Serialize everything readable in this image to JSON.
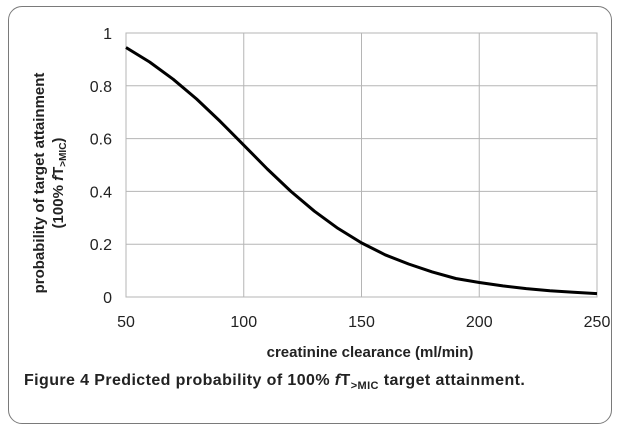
{
  "chart_data": {
    "type": "line",
    "title": "",
    "xlabel": "creatinine clearance (ml/min)",
    "ylabel_line1": "probability of target attainment",
    "ylabel_line2_prefix": "(100% ",
    "ylabel_line2_f": "f",
    "ylabel_line2_T": "T",
    "ylabel_line2_sub": ">MIC",
    "ylabel_line2_suffix": ")",
    "xlim": [
      50,
      250
    ],
    "ylim": [
      0,
      1
    ],
    "xticks": [
      50,
      100,
      150,
      200,
      250
    ],
    "yticks": [
      0,
      0.2,
      0.4,
      0.6,
      0.8,
      1
    ],
    "ytick_labels": [
      "0",
      "0.2",
      "0.4",
      "0.6",
      "0.8",
      "1"
    ],
    "grid": true,
    "line_color": "#000000",
    "series": [
      {
        "x": [
          50,
          60,
          70,
          80,
          90,
          100,
          110,
          120,
          130,
          140,
          150,
          160,
          170,
          180,
          190,
          200,
          210,
          220,
          230,
          240,
          250
        ],
        "values": [
          0.945,
          0.89,
          0.825,
          0.75,
          0.665,
          0.575,
          0.485,
          0.4,
          0.325,
          0.26,
          0.205,
          0.16,
          0.125,
          0.095,
          0.07,
          0.055,
          0.042,
          0.032,
          0.024,
          0.018,
          0.013
        ]
      }
    ]
  },
  "caption": {
    "label": "Figure 4",
    "text_before": "Predicted probability of 100% ",
    "f": "f",
    "T": "T",
    "sub": ">MIC",
    "text_after": " target attainment",
    "end": "."
  }
}
